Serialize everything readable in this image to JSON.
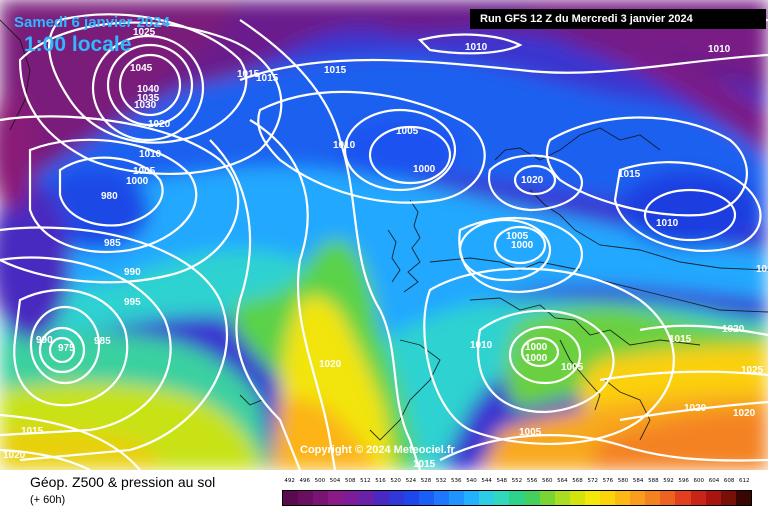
{
  "header": {
    "date": "Samedi 6 janvier 2024",
    "time": "1:00 locale",
    "run": "Run GFS 12 Z du Mercredi 3 janvier 2024"
  },
  "copyright": "Copyright © 2024 Meteociel.fr",
  "legend": {
    "title": "Géop. Z500 & pression au sol",
    "subtitle": "(+ 60h)",
    "scale_values": [
      "492",
      "496",
      "500",
      "504",
      "508",
      "512",
      "516",
      "520",
      "524",
      "528",
      "532",
      "536",
      "540",
      "544",
      "548",
      "552",
      "556",
      "560",
      "564",
      "568",
      "572",
      "576",
      "580",
      "584",
      "588",
      "592",
      "596",
      "600",
      "604",
      "608",
      "612"
    ],
    "scale_colors": [
      "#5a0a4e",
      "#6a0e60",
      "#7a1472",
      "#8a1a86",
      "#7d1c98",
      "#6a20aa",
      "#4a28c2",
      "#3038d8",
      "#1e46ea",
      "#1a5ef8",
      "#1d78ff",
      "#1f94ff",
      "#22b0ff",
      "#2ccde6",
      "#30d8bc",
      "#2fd28a",
      "#44d05a",
      "#7ad434",
      "#aade22",
      "#d2e40c",
      "#f4e80a",
      "#fcd40c",
      "#fcb814",
      "#fa9c1c",
      "#f48220",
      "#ec6220",
      "#e04020",
      "#c82418",
      "#a81410",
      "#781008",
      "#3a0604"
    ]
  },
  "pressure_labels": [
    {
      "text": "1025"
    },
    {
      "text": "1045"
    },
    {
      "text": "1040"
    },
    {
      "text": "1035"
    },
    {
      "text": "1030"
    },
    {
      "text": "1020"
    },
    {
      "text": "1015"
    },
    {
      "text": "1015"
    },
    {
      "text": "1010"
    },
    {
      "text": "1005"
    },
    {
      "text": "1000"
    },
    {
      "text": "980"
    },
    {
      "text": "985"
    },
    {
      "text": "990"
    },
    {
      "text": "995"
    },
    {
      "text": "990"
    },
    {
      "text": "975"
    },
    {
      "text": "985"
    },
    {
      "text": "1015"
    },
    {
      "text": "1020"
    },
    {
      "text": "1015"
    },
    {
      "text": "1010"
    },
    {
      "text": "1005"
    },
    {
      "text": "1000"
    },
    {
      "text": "1010"
    },
    {
      "text": "1020"
    },
    {
      "text": "1005"
    },
    {
      "text": "1000"
    },
    {
      "text": "1010"
    },
    {
      "text": "1000"
    },
    {
      "text": "1000"
    },
    {
      "text": "1005"
    },
    {
      "text": "1015"
    },
    {
      "text": "1020"
    },
    {
      "text": "1005"
    },
    {
      "text": "1015"
    },
    {
      "text": "1020"
    },
    {
      "text": "1010"
    },
    {
      "text": "1010"
    },
    {
      "text": "1015"
    },
    {
      "text": "1020"
    },
    {
      "text": "1025"
    },
    {
      "text": "1020"
    },
    {
      "text": "1020"
    },
    {
      "text": "1010"
    }
  ]
}
